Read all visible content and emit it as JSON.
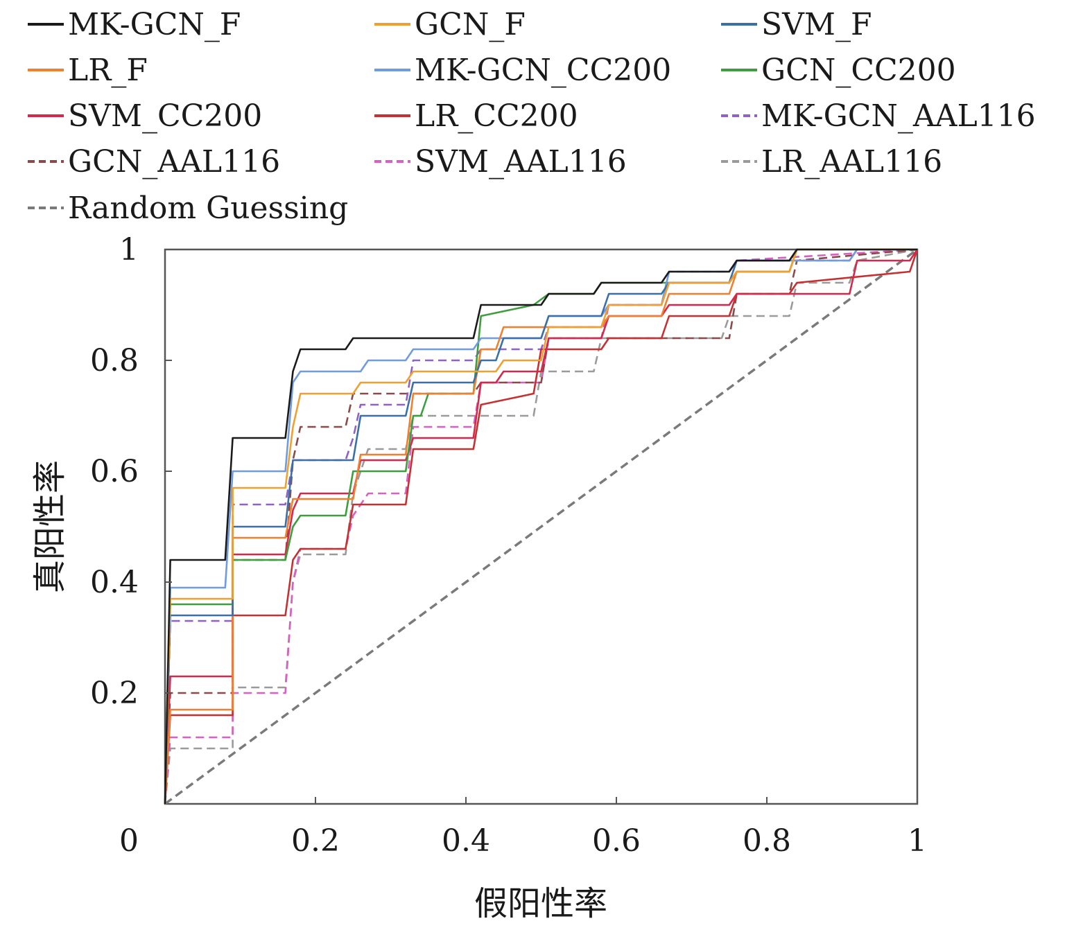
{
  "chart_data": {
    "type": "line",
    "title": "",
    "xlabel": "假阳性率",
    "ylabel": "真阳性率",
    "xlim": [
      0,
      1
    ],
    "ylim": [
      0,
      1
    ],
    "grid": false,
    "legend_placement": "top",
    "x_ticks": [
      "0",
      "0.2",
      "0.4",
      "0.6",
      "0.8",
      "1"
    ],
    "y_ticks": [
      "0.2",
      "0.4",
      "0.6",
      "0.8",
      "1"
    ],
    "series": [
      {
        "name": "MK-GCN_F",
        "color": "#1a1a1a",
        "dash": "solid",
        "points": [
          [
            0,
            0
          ],
          [
            0.007,
            0.44
          ],
          [
            0.08,
            0.44
          ],
          [
            0.09,
            0.66
          ],
          [
            0.16,
            0.66
          ],
          [
            0.17,
            0.78
          ],
          [
            0.18,
            0.82
          ],
          [
            0.24,
            0.82
          ],
          [
            0.25,
            0.84
          ],
          [
            0.41,
            0.84
          ],
          [
            0.42,
            0.9
          ],
          [
            0.5,
            0.9
          ],
          [
            0.51,
            0.92
          ],
          [
            0.57,
            0.92
          ],
          [
            0.58,
            0.94
          ],
          [
            0.66,
            0.94
          ],
          [
            0.67,
            0.96
          ],
          [
            0.75,
            0.96
          ],
          [
            0.76,
            0.98
          ],
          [
            0.83,
            0.98
          ],
          [
            0.84,
            1.0
          ],
          [
            1,
            1
          ]
        ]
      },
      {
        "name": "GCN_F",
        "color": "#f0a030",
        "dash": "solid",
        "points": [
          [
            0,
            0
          ],
          [
            0.007,
            0.37
          ],
          [
            0.09,
            0.37
          ],
          [
            0.09,
            0.57
          ],
          [
            0.16,
            0.57
          ],
          [
            0.17,
            0.68
          ],
          [
            0.18,
            0.74
          ],
          [
            0.25,
            0.74
          ],
          [
            0.26,
            0.76
          ],
          [
            0.32,
            0.76
          ],
          [
            0.33,
            0.78
          ],
          [
            0.44,
            0.78
          ],
          [
            0.45,
            0.8
          ],
          [
            0.5,
            0.8
          ],
          [
            0.51,
            0.86
          ],
          [
            0.58,
            0.86
          ],
          [
            0.59,
            0.9
          ],
          [
            0.66,
            0.9
          ],
          [
            0.67,
            0.94
          ],
          [
            0.75,
            0.94
          ],
          [
            0.76,
            0.96
          ],
          [
            0.83,
            0.96
          ],
          [
            0.84,
            1.0
          ],
          [
            1,
            1
          ]
        ]
      },
      {
        "name": "SVM_F",
        "color": "#3a6fa8",
        "dash": "solid",
        "points": [
          [
            0,
            0
          ],
          [
            0.007,
            0.34
          ],
          [
            0.09,
            0.34
          ],
          [
            0.09,
            0.5
          ],
          [
            0.16,
            0.5
          ],
          [
            0.17,
            0.62
          ],
          [
            0.25,
            0.62
          ],
          [
            0.26,
            0.7
          ],
          [
            0.32,
            0.7
          ],
          [
            0.33,
            0.76
          ],
          [
            0.41,
            0.76
          ],
          [
            0.42,
            0.8
          ],
          [
            0.44,
            0.8
          ],
          [
            0.45,
            0.84
          ],
          [
            0.5,
            0.84
          ],
          [
            0.51,
            0.88
          ],
          [
            0.58,
            0.88
          ],
          [
            0.59,
            0.92
          ],
          [
            0.66,
            0.92
          ],
          [
            0.67,
            0.94
          ],
          [
            0.75,
            0.94
          ],
          [
            0.76,
            0.98
          ],
          [
            0.83,
            0.98
          ],
          [
            0.84,
            1.0
          ],
          [
            1,
            1
          ]
        ]
      },
      {
        "name": "LR_F",
        "color": "#f07f30",
        "dash": "solid",
        "points": [
          [
            0,
            0
          ],
          [
            0.007,
            0.17
          ],
          [
            0.09,
            0.17
          ],
          [
            0.09,
            0.48
          ],
          [
            0.16,
            0.48
          ],
          [
            0.17,
            0.55
          ],
          [
            0.25,
            0.55
          ],
          [
            0.26,
            0.63
          ],
          [
            0.32,
            0.63
          ],
          [
            0.33,
            0.74
          ],
          [
            0.41,
            0.74
          ],
          [
            0.42,
            0.82
          ],
          [
            0.44,
            0.82
          ],
          [
            0.45,
            0.86
          ],
          [
            0.5,
            0.86
          ],
          [
            0.51,
            0.86
          ],
          [
            0.58,
            0.86
          ],
          [
            0.59,
            0.88
          ],
          [
            0.66,
            0.88
          ],
          [
            0.67,
            0.92
          ],
          [
            0.75,
            0.92
          ],
          [
            0.76,
            0.96
          ],
          [
            0.83,
            0.96
          ],
          [
            0.84,
            1.0
          ],
          [
            1,
            1
          ]
        ]
      },
      {
        "name": "MK-GCN_CC200",
        "color": "#6f9be0",
        "dash": "solid",
        "points": [
          [
            0,
            0
          ],
          [
            0.007,
            0.39
          ],
          [
            0.08,
            0.39
          ],
          [
            0.09,
            0.6
          ],
          [
            0.16,
            0.6
          ],
          [
            0.17,
            0.76
          ],
          [
            0.18,
            0.78
          ],
          [
            0.26,
            0.78
          ],
          [
            0.27,
            0.8
          ],
          [
            0.32,
            0.8
          ],
          [
            0.33,
            0.82
          ],
          [
            0.41,
            0.82
          ],
          [
            0.42,
            0.84
          ],
          [
            0.5,
            0.84
          ],
          [
            0.51,
            0.88
          ],
          [
            0.58,
            0.88
          ],
          [
            0.59,
            0.9
          ],
          [
            0.66,
            0.9
          ],
          [
            0.67,
            0.96
          ],
          [
            0.75,
            0.96
          ],
          [
            0.76,
            0.98
          ],
          [
            0.91,
            0.98
          ],
          [
            0.92,
            1.0
          ],
          [
            1,
            1
          ]
        ]
      },
      {
        "name": "GCN_CC200",
        "color": "#3e9d3e",
        "dash": "solid",
        "points": [
          [
            0,
            0
          ],
          [
            0.007,
            0.36
          ],
          [
            0.09,
            0.36
          ],
          [
            0.09,
            0.44
          ],
          [
            0.16,
            0.44
          ],
          [
            0.17,
            0.5
          ],
          [
            0.18,
            0.52
          ],
          [
            0.24,
            0.52
          ],
          [
            0.25,
            0.6
          ],
          [
            0.32,
            0.6
          ],
          [
            0.33,
            0.7
          ],
          [
            0.34,
            0.7
          ],
          [
            0.35,
            0.74
          ],
          [
            0.41,
            0.74
          ],
          [
            0.42,
            0.88
          ],
          [
            0.49,
            0.9
          ],
          [
            0.51,
            0.92
          ],
          [
            0.57,
            0.92
          ],
          [
            0.58,
            0.94
          ],
          [
            0.75,
            0.94
          ],
          [
            0.76,
            0.96
          ],
          [
            0.83,
            0.96
          ],
          [
            0.84,
            1.0
          ],
          [
            1,
            1
          ]
        ]
      },
      {
        "name": "SVM_CC200",
        "color": "#d6284a",
        "dash": "solid",
        "points": [
          [
            0,
            0
          ],
          [
            0.007,
            0.23
          ],
          [
            0.09,
            0.23
          ],
          [
            0.09,
            0.45
          ],
          [
            0.16,
            0.45
          ],
          [
            0.17,
            0.53
          ],
          [
            0.18,
            0.56
          ],
          [
            0.25,
            0.56
          ],
          [
            0.26,
            0.62
          ],
          [
            0.32,
            0.62
          ],
          [
            0.33,
            0.66
          ],
          [
            0.41,
            0.66
          ],
          [
            0.42,
            0.76
          ],
          [
            0.44,
            0.76
          ],
          [
            0.45,
            0.78
          ],
          [
            0.5,
            0.78
          ],
          [
            0.51,
            0.84
          ],
          [
            0.58,
            0.84
          ],
          [
            0.59,
            0.88
          ],
          [
            0.66,
            0.88
          ],
          [
            0.67,
            0.9
          ],
          [
            0.75,
            0.9
          ],
          [
            0.76,
            0.92
          ],
          [
            0.91,
            0.92
          ],
          [
            0.92,
            0.98
          ],
          [
            0.99,
            0.98
          ],
          [
            1,
            1
          ]
        ]
      },
      {
        "name": "LR_CC200",
        "color": "#c73030",
        "dash": "solid",
        "points": [
          [
            0,
            0
          ],
          [
            0.007,
            0.16
          ],
          [
            0.09,
            0.16
          ],
          [
            0.09,
            0.34
          ],
          [
            0.16,
            0.34
          ],
          [
            0.17,
            0.44
          ],
          [
            0.18,
            0.46
          ],
          [
            0.24,
            0.46
          ],
          [
            0.25,
            0.54
          ],
          [
            0.32,
            0.54
          ],
          [
            0.33,
            0.64
          ],
          [
            0.41,
            0.64
          ],
          [
            0.42,
            0.72
          ],
          [
            0.49,
            0.74
          ],
          [
            0.5,
            0.82
          ],
          [
            0.58,
            0.82
          ],
          [
            0.59,
            0.84
          ],
          [
            0.66,
            0.84
          ],
          [
            0.67,
            0.88
          ],
          [
            0.75,
            0.88
          ],
          [
            0.76,
            0.92
          ],
          [
            0.83,
            0.92
          ],
          [
            0.84,
            0.94
          ],
          [
            0.99,
            0.96
          ],
          [
            1,
            1
          ]
        ]
      },
      {
        "name": "MK-GCN_AAL116",
        "color": "#9060c8",
        "dash": "dashed",
        "points": [
          [
            0,
            0
          ],
          [
            0.007,
            0.33
          ],
          [
            0.09,
            0.33
          ],
          [
            0.09,
            0.54
          ],
          [
            0.16,
            0.54
          ],
          [
            0.17,
            0.62
          ],
          [
            0.24,
            0.62
          ],
          [
            0.25,
            0.66
          ],
          [
            0.26,
            0.72
          ],
          [
            0.32,
            0.72
          ],
          [
            0.33,
            0.8
          ],
          [
            0.41,
            0.8
          ],
          [
            0.42,
            0.82
          ],
          [
            0.5,
            0.82
          ],
          [
            0.51,
            0.86
          ],
          [
            0.58,
            0.86
          ],
          [
            0.59,
            0.9
          ],
          [
            0.66,
            0.9
          ],
          [
            0.67,
            0.96
          ],
          [
            0.75,
            0.96
          ],
          [
            0.76,
            0.98
          ],
          [
            0.91,
            0.98
          ],
          [
            0.92,
            1.0
          ],
          [
            1,
            1
          ]
        ]
      },
      {
        "name": "GCN_AAL116",
        "color": "#8b4a4a",
        "dash": "dashed",
        "points": [
          [
            0,
            0
          ],
          [
            0.007,
            0.2
          ],
          [
            0.09,
            0.2
          ],
          [
            0.09,
            0.44
          ],
          [
            0.16,
            0.44
          ],
          [
            0.17,
            0.62
          ],
          [
            0.18,
            0.68
          ],
          [
            0.24,
            0.68
          ],
          [
            0.25,
            0.74
          ],
          [
            0.41,
            0.74
          ],
          [
            0.42,
            0.76
          ],
          [
            0.5,
            0.76
          ],
          [
            0.51,
            0.84
          ],
          [
            0.75,
            0.84
          ],
          [
            0.76,
            0.92
          ],
          [
            0.83,
            0.92
          ],
          [
            0.84,
            0.98
          ],
          [
            1,
            1
          ]
        ]
      },
      {
        "name": "SVM_AAL116",
        "color": "#d860c0",
        "dash": "dashed",
        "points": [
          [
            0,
            0
          ],
          [
            0.007,
            0.12
          ],
          [
            0.09,
            0.12
          ],
          [
            0.09,
            0.2
          ],
          [
            0.16,
            0.2
          ],
          [
            0.17,
            0.4
          ],
          [
            0.18,
            0.46
          ],
          [
            0.24,
            0.46
          ],
          [
            0.25,
            0.52
          ],
          [
            0.27,
            0.56
          ],
          [
            0.32,
            0.56
          ],
          [
            0.33,
            0.68
          ],
          [
            0.41,
            0.68
          ],
          [
            0.42,
            0.76
          ],
          [
            0.5,
            0.76
          ],
          [
            0.51,
            0.84
          ],
          [
            0.58,
            0.84
          ],
          [
            0.59,
            0.9
          ],
          [
            0.66,
            0.9
          ],
          [
            0.67,
            0.94
          ],
          [
            0.75,
            0.94
          ],
          [
            0.76,
            0.98
          ],
          [
            1,
            1
          ]
        ]
      },
      {
        "name": "LR_AAL116",
        "color": "#9a9a9a",
        "dash": "dashed",
        "points": [
          [
            0,
            0
          ],
          [
            0.007,
            0.1
          ],
          [
            0.09,
            0.1
          ],
          [
            0.09,
            0.21
          ],
          [
            0.16,
            0.21
          ],
          [
            0.17,
            0.4
          ],
          [
            0.18,
            0.45
          ],
          [
            0.24,
            0.45
          ],
          [
            0.25,
            0.56
          ],
          [
            0.27,
            0.64
          ],
          [
            0.32,
            0.64
          ],
          [
            0.33,
            0.7
          ],
          [
            0.49,
            0.7
          ],
          [
            0.5,
            0.78
          ],
          [
            0.57,
            0.78
          ],
          [
            0.58,
            0.84
          ],
          [
            0.74,
            0.84
          ],
          [
            0.75,
            0.88
          ],
          [
            0.83,
            0.88
          ],
          [
            0.84,
            0.94
          ],
          [
            0.91,
            0.94
          ],
          [
            0.92,
            0.98
          ],
          [
            1,
            1
          ]
        ]
      },
      {
        "name": "Random Guessing",
        "color": "#7a7a7a",
        "dash": "dashed",
        "points": [
          [
            0,
            0
          ],
          [
            1,
            1
          ]
        ]
      }
    ]
  }
}
